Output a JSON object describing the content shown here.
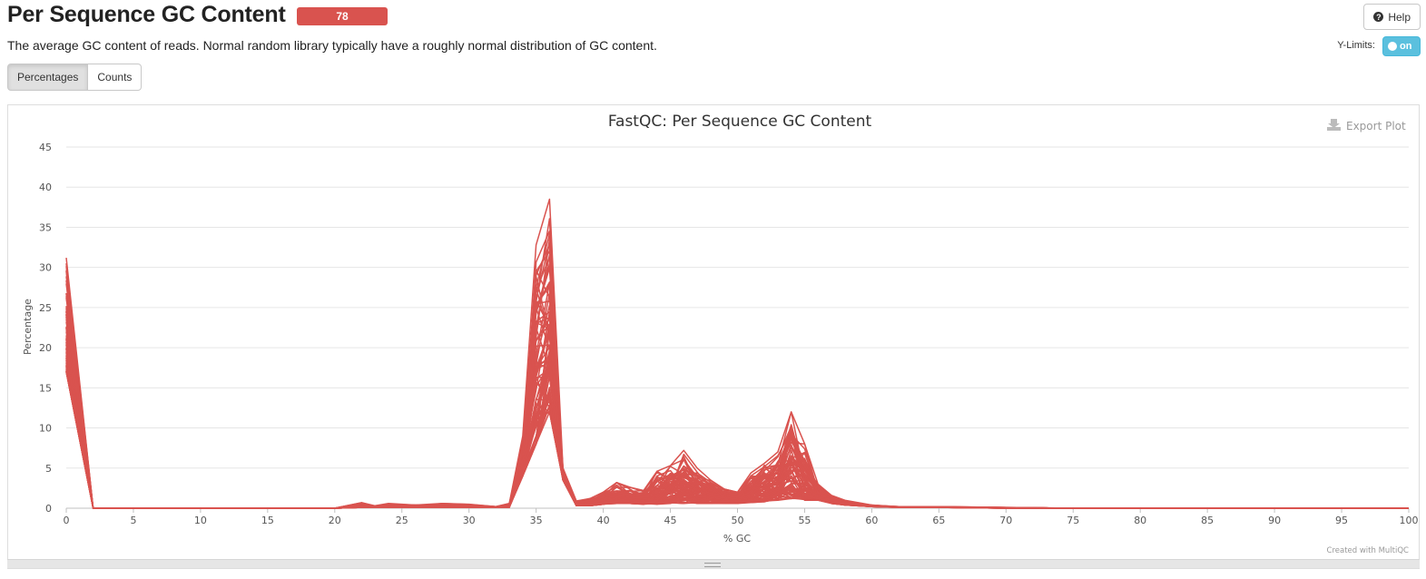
{
  "header": {
    "title": "Per Sequence GC Content",
    "badge": "78",
    "help_label": "Help",
    "description": "The average GC content of reads. Normal random library typically have a roughly normal distribution of GC content.",
    "ylimits_label": "Y-Limits:",
    "ylimits_state": "on"
  },
  "tabs": [
    "Percentages",
    "Counts"
  ],
  "active_tab": "Percentages",
  "export_label": "Export Plot",
  "credit": "Created with MultiQC",
  "colors": {
    "series": "#d9534f",
    "badge": "#d9534f",
    "toggle": "#5bc0de"
  },
  "chart_data": {
    "type": "line",
    "title": "FastQC: Per Sequence GC Content",
    "xlabel": "% GC",
    "ylabel": "Percentage",
    "xlim": [
      0,
      100
    ],
    "ylim": [
      0,
      45
    ],
    "xticks": [
      0,
      5,
      10,
      15,
      20,
      25,
      30,
      35,
      40,
      45,
      50,
      55,
      60,
      65,
      70,
      75,
      80,
      85,
      90,
      95,
      100
    ],
    "yticks": [
      0,
      5,
      10,
      15,
      20,
      25,
      30,
      35,
      40,
      45
    ],
    "grid": true,
    "legend": "none",
    "series_count": 78,
    "representative_envelope": {
      "x": [
        0,
        2,
        20,
        22,
        23,
        24,
        26,
        28,
        30,
        32,
        33,
        34,
        35,
        36,
        37,
        38,
        39,
        40,
        41,
        42,
        43,
        44,
        45,
        46,
        47,
        48,
        49,
        50,
        51,
        52,
        53,
        54,
        55,
        56,
        57,
        58,
        60,
        62,
        65,
        70,
        75,
        100
      ],
      "max": [
        31.2,
        0,
        0,
        0.7,
        0.3,
        0.6,
        0.4,
        0.6,
        0.5,
        0.2,
        0.6,
        9.0,
        32.8,
        38.5,
        5.0,
        0.9,
        1.2,
        2.0,
        3.2,
        2.6,
        2.2,
        4.6,
        5.3,
        7.2,
        5.0,
        3.5,
        2.4,
        2.0,
        4.4,
        5.6,
        7.0,
        12.0,
        8.0,
        3.0,
        1.6,
        1.0,
        0.4,
        0.2,
        0.2,
        0.1,
        0,
        0
      ],
      "min": [
        17.0,
        0,
        0,
        0.1,
        0.1,
        0.1,
        0.1,
        0.1,
        0.1,
        0.1,
        0.1,
        4.0,
        8.0,
        12.0,
        3.5,
        0.3,
        0.3,
        0.5,
        0.6,
        0.6,
        0.5,
        0.5,
        0.6,
        0.6,
        0.6,
        0.6,
        0.6,
        0.6,
        0.7,
        0.8,
        1.0,
        1.2,
        1.0,
        1.0,
        0.6,
        0.4,
        0.2,
        0.1,
        0.1,
        0,
        0,
        0
      ]
    }
  }
}
